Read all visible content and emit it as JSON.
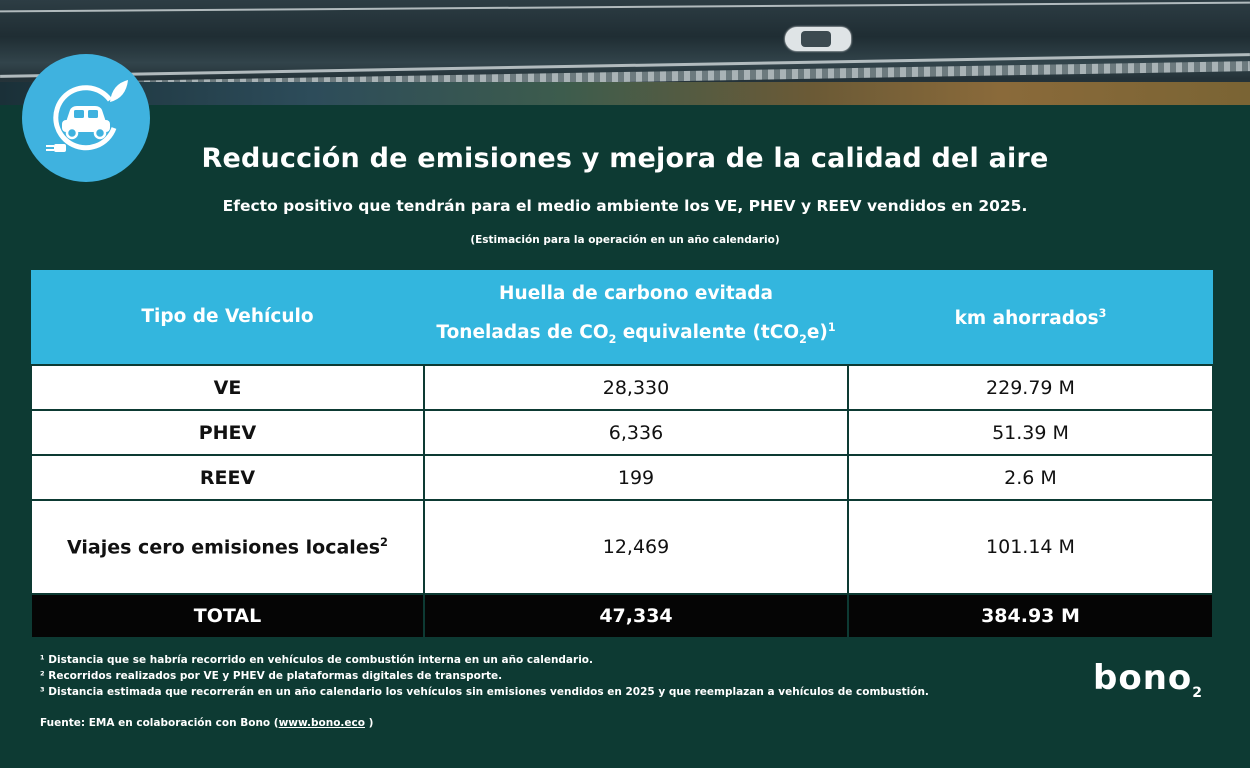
{
  "header": {
    "title": "Reducción de emisiones y mejora de la calidad del aire",
    "subtitle": "Efecto positivo que tendrán para el medio ambiente los VE, PHEV y REEV vendidos en 2025.",
    "note": "(Estimación para la operación en un año calendario)"
  },
  "table": {
    "headers": {
      "col1": "Tipo de Vehículo",
      "col2_line1": "Huella de carbono evitada",
      "col2_line2a": "Toneladas de CO",
      "col2_line2_sub": "2",
      "col2_line2b": " equivalente (tCO",
      "col2_line2_sub2": "2",
      "col2_line2c": "e)",
      "col2_sup": "1",
      "col3": "km ahorrados",
      "col3_sup": "3"
    },
    "rows": [
      {
        "label": "VE",
        "co2": "28,330",
        "km": "229.79 M"
      },
      {
        "label": "PHEV",
        "co2": "6,336",
        "km": "51.39 M"
      },
      {
        "label": "REEV",
        "co2": "199",
        "km": "2.6 M"
      },
      {
        "label": "Viajes cero emisiones locales",
        "label_sup": "2",
        "co2": "12,469",
        "km": "101.14 M"
      }
    ],
    "total": {
      "label": "TOTAL",
      "co2": "47,334",
      "km": "384.93 M"
    }
  },
  "footnotes": [
    "¹ Distancia que se habría recorrido en vehículos de combustión interna en un año calendario.",
    "² Recorridos realizados por VE y PHEV de plataformas digitales de transporte.",
    "³ Distancia estimada que recorrerán en un año calendario los vehículos sin emisiones vendidos en 2025 y que reemplazan a vehículos de combustión."
  ],
  "source": {
    "prefix": "Fuente: EMA en colaboración con Bono (",
    "link": "www.bono.eco",
    "suffix": " )"
  },
  "brand": {
    "name": "bono",
    "sub": "2"
  },
  "icons": {
    "top_logo": "electric-car-plug-leaf-icon"
  },
  "colors": {
    "background": "#0d3a33",
    "header_blue": "#33b6de",
    "logo_blue": "#3fb2df",
    "total_row": "#050505"
  }
}
